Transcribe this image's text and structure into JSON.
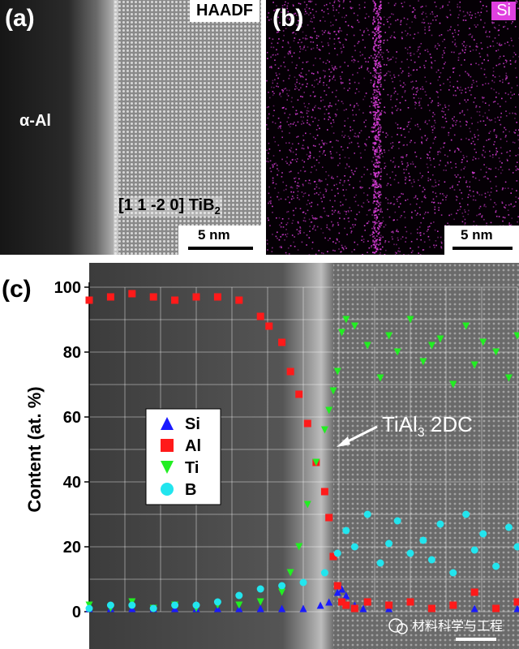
{
  "panel_a": {
    "label": "(a)",
    "mode": "HAADF",
    "region_left": "α-Al",
    "zone_axis": "[1 1 -2 0] TiB",
    "zone_axis_sub": "2",
    "scale": "5 nm"
  },
  "panel_b": {
    "label": "(b)",
    "element": "Si",
    "scale": "5 nm"
  },
  "panel_c": {
    "label": "(c)",
    "annotation": "TiAl",
    "annotation_sub": "3",
    "annotation_rest": " 2DC",
    "watermark": "材料科学与工程"
  },
  "colors": {
    "Si": "#1a1aff",
    "Al": "#ff1a1a",
    "Ti": "#22ee22",
    "B": "#22e5ee",
    "magenta": "#e040e0"
  },
  "chart_data": {
    "type": "scatter",
    "title": "",
    "xlabel": "",
    "ylabel": "Content (at. %)",
    "ylim": [
      0,
      100
    ],
    "yticks": [
      0,
      20,
      40,
      60,
      80,
      100
    ],
    "xlim": [
      0,
      100
    ],
    "grid": true,
    "legend_position": "center-left",
    "series": [
      {
        "name": "Si",
        "marker": "triangle-up",
        "x": [
          0,
          5,
          10,
          15,
          20,
          25,
          30,
          35,
          40,
          45,
          50,
          54,
          56,
          58,
          59,
          60,
          62,
          64,
          70,
          80,
          90,
          100
        ],
        "y": [
          1,
          1,
          1,
          1,
          1,
          1,
          1,
          1,
          1,
          1,
          1,
          2,
          3,
          6,
          7,
          5,
          2,
          1,
          1,
          1,
          1,
          1
        ]
      },
      {
        "name": "Al",
        "marker": "square",
        "x": [
          0,
          5,
          10,
          15,
          20,
          25,
          30,
          35,
          40,
          42,
          45,
          47,
          49,
          51,
          53,
          55,
          56,
          57,
          58,
          59,
          60,
          62,
          65,
          70,
          75,
          80,
          85,
          90,
          95,
          100
        ],
        "y": [
          96,
          97,
          98,
          97,
          96,
          97,
          97,
          96,
          91,
          88,
          83,
          74,
          67,
          58,
          46,
          37,
          29,
          17,
          8,
          3,
          2,
          1,
          3,
          2,
          3,
          1,
          2,
          6,
          1,
          3
        ]
      },
      {
        "name": "Ti",
        "marker": "triangle-down",
        "x": [
          0,
          5,
          10,
          15,
          20,
          25,
          30,
          35,
          40,
          45,
          47,
          49,
          51,
          53,
          55,
          56,
          57,
          58,
          59,
          60,
          62,
          65,
          68,
          70,
          72,
          75,
          78,
          80,
          82,
          85,
          88,
          90,
          92,
          95,
          98,
          100
        ],
        "y": [
          2,
          1,
          3,
          1,
          2,
          1,
          2,
          2,
          3,
          6,
          12,
          20,
          33,
          46,
          56,
          62,
          68,
          74,
          86,
          90,
          88,
          82,
          72,
          85,
          80,
          90,
          77,
          82,
          84,
          70,
          88,
          76,
          83,
          80,
          72,
          85
        ]
      },
      {
        "name": "B",
        "marker": "circle",
        "x": [
          0,
          5,
          10,
          15,
          20,
          25,
          30,
          35,
          40,
          45,
          50,
          55,
          58,
          60,
          62,
          65,
          68,
          70,
          72,
          75,
          78,
          80,
          82,
          85,
          88,
          90,
          92,
          95,
          98,
          100
        ],
        "y": [
          1,
          2,
          2,
          1,
          2,
          2,
          3,
          5,
          7,
          8,
          9,
          12,
          18,
          25,
          20,
          30,
          15,
          21,
          28,
          18,
          22,
          16,
          27,
          12,
          30,
          19,
          24,
          14,
          26,
          20
        ]
      }
    ]
  }
}
